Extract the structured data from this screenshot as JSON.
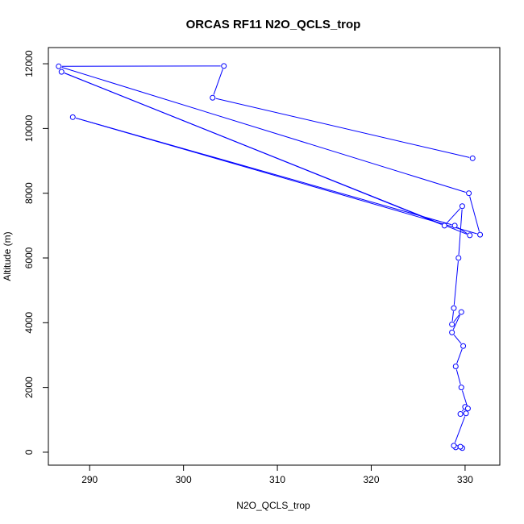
{
  "chart_data": {
    "type": "line",
    "title": "ORCAS RF11 N2O_QCLS_trop",
    "xlabel": "N2O_QCLS_trop",
    "ylabel": "Altitude (m)",
    "xlim": [
      285.6,
      333.7
    ],
    "ylim": [
      -400,
      12500
    ],
    "xticks": [
      290,
      300,
      310,
      320,
      330
    ],
    "yticks": [
      0,
      2000,
      4000,
      6000,
      8000,
      10000,
      12000
    ],
    "grid": false,
    "legend": "none",
    "color": "#0000ff",
    "series": [
      {
        "points": [
          [
            329.7,
            130
          ],
          [
            329.0,
            150
          ],
          [
            329.5,
            170
          ],
          [
            328.8,
            200
          ],
          [
            330.1,
            1200
          ],
          [
            329.5,
            1180
          ],
          [
            330.0,
            1400
          ],
          [
            330.3,
            1350
          ],
          [
            329.6,
            2000
          ],
          [
            329.0,
            2650
          ],
          [
            329.8,
            3280
          ],
          [
            328.6,
            3700
          ],
          [
            329.6,
            4330
          ],
          [
            328.6,
            3950
          ],
          [
            328.8,
            4450
          ],
          [
            329.3,
            6000
          ],
          [
            329.7,
            7600
          ],
          [
            327.8,
            7000
          ],
          [
            287.0,
            11750
          ],
          [
            330.5,
            6700
          ],
          [
            328.9,
            7000
          ],
          [
            288.2,
            10350
          ],
          [
            331.6,
            6720
          ],
          [
            330.4,
            8000
          ],
          [
            286.7,
            11920
          ],
          [
            304.3,
            11930
          ],
          [
            303.1,
            10950
          ],
          [
            330.8,
            9080
          ]
        ]
      }
    ]
  }
}
